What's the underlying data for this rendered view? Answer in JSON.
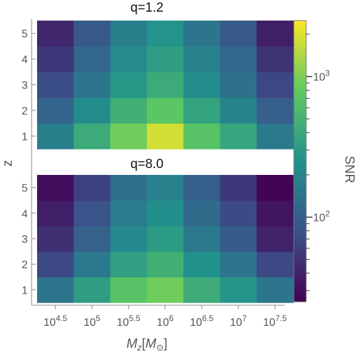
{
  "chart_data": [
    {
      "type": "heatmap",
      "title": "q=1.2",
      "x_categories": [
        "4.5",
        "5",
        "5.5",
        "6",
        "6.5",
        "7",
        "7.5"
      ],
      "y_categories": [
        1,
        2,
        3,
        4,
        5
      ],
      "z": [
        [
          180,
          420,
          900,
          1800,
          700,
          380,
          160
        ],
        [
          110,
          230,
          460,
          750,
          360,
          200,
          100
        ],
        [
          75,
          150,
          280,
          420,
          230,
          140,
          68
        ],
        [
          55,
          115,
          220,
          320,
          185,
          115,
          50
        ],
        [
          42,
          92,
          180,
          260,
          150,
          92,
          38
        ]
      ]
    },
    {
      "type": "heatmap",
      "title": "q=8.0",
      "x_categories": [
        "4.5",
        "5",
        "5.5",
        "6",
        "6.5",
        "7",
        "7.5"
      ],
      "y_categories": [
        1,
        2,
        3,
        4,
        5
      ],
      "z": [
        [
          150,
          320,
          700,
          900,
          430,
          270,
          150
        ],
        [
          70,
          160,
          330,
          470,
          250,
          150,
          70
        ],
        [
          48,
          105,
          215,
          310,
          160,
          95,
          40
        ],
        [
          38,
          82,
          175,
          240,
          125,
          72,
          33
        ],
        [
          30,
          62,
          135,
          185,
          100,
          55,
          26
        ]
      ]
    }
  ],
  "axes": {
    "x_tick_base": "10",
    "x_tick_exponents": [
      "4.5",
      "5",
      "5.5",
      "6",
      "6.5",
      "7",
      "7.5"
    ],
    "xlabel_main": "M",
    "xlabel_sub": "z",
    "xlabel_unit": "M",
    "xlabel_unit_sub": "⊙",
    "ylabel": "z",
    "y_ticks": [
      "1",
      "2",
      "3",
      "4",
      "5"
    ]
  },
  "colorbar": {
    "label": "SNR",
    "scale": "log",
    "range": [
      25,
      2500
    ],
    "tick_labels": [
      {
        "base": "10",
        "exp": "2",
        "value": 100
      },
      {
        "base": "10",
        "exp": "3",
        "value": 1000
      }
    ],
    "colormap": [
      "#440154",
      "#3b528b",
      "#21918c",
      "#5ec962",
      "#fde725"
    ]
  }
}
